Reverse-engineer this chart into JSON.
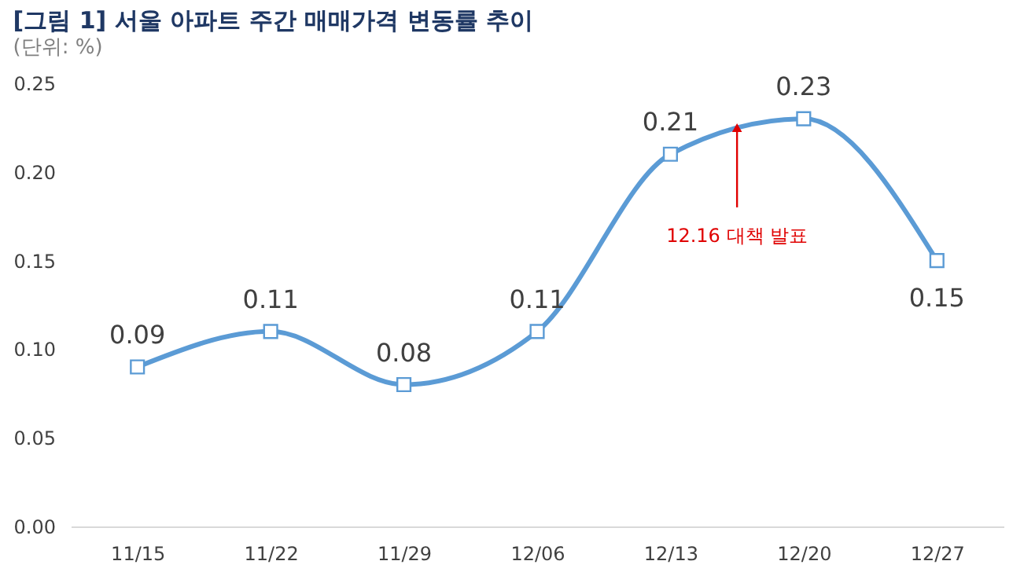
{
  "chart_data": {
    "type": "line",
    "title": "[그림 1] 서울 아파트 주간 매매가격 변동률 추이",
    "subtitle": "(단위: %)",
    "categories": [
      "11/15",
      "11/22",
      "11/29",
      "12/06",
      "12/13",
      "12/20",
      "12/27"
    ],
    "series": [
      {
        "color": "#5b9bd5",
        "values": [
          0.09,
          0.11,
          0.08,
          0.11,
          0.21,
          0.23,
          0.15
        ]
      }
    ],
    "ylim": [
      0,
      0.25
    ],
    "yticks": [
      {
        "value": 0,
        "label": "0.00"
      },
      {
        "value": 0.05,
        "label": "0.05"
      },
      {
        "value": 0.1,
        "label": "0.10"
      },
      {
        "value": 0.15,
        "label": "0.15"
      },
      {
        "value": 0.2,
        "label": "0.20"
      },
      {
        "value": 0.25,
        "label": "0.25"
      }
    ],
    "annotations": [
      {
        "text": "12.16 대책 발표",
        "y": 0.225
      }
    ],
    "marker": "square",
    "line_style": "solid",
    "data_labels": true,
    "grid": false
  }
}
